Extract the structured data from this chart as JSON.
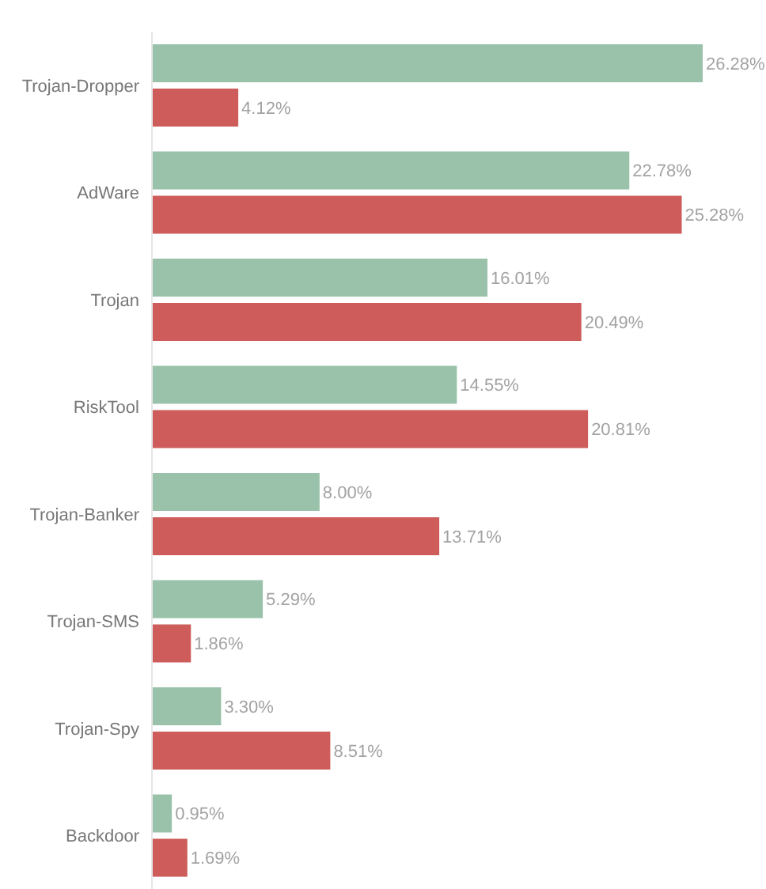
{
  "chart_data": {
    "type": "bar",
    "orientation": "horizontal",
    "categories": [
      "Trojan-Dropper",
      "AdWare",
      "Trojan",
      "RiskTool",
      "Trojan-Banker",
      "Trojan-SMS",
      "Trojan-Spy",
      "Backdoor"
    ],
    "series": [
      {
        "color": "#9ac2aa",
        "values": [
          26.28,
          22.78,
          16.01,
          14.55,
          8.0,
          5.29,
          3.3,
          0.95
        ],
        "value_labels": [
          "26.28%",
          "22.78%",
          "16.01%",
          "14.55%",
          "8.00%",
          "5.29%",
          "3.30%",
          "0.95%"
        ]
      },
      {
        "color": "#cd5c5a",
        "values": [
          4.12,
          25.28,
          20.49,
          20.81,
          13.71,
          1.86,
          8.51,
          1.69
        ],
        "value_labels": [
          "4.12%",
          "25.28%",
          "20.49%",
          "20.81%",
          "13.71%",
          "1.86%",
          "8.51%",
          "1.69%"
        ]
      }
    ],
    "grid": false,
    "legend": false,
    "tick_labels": "y"
  }
}
